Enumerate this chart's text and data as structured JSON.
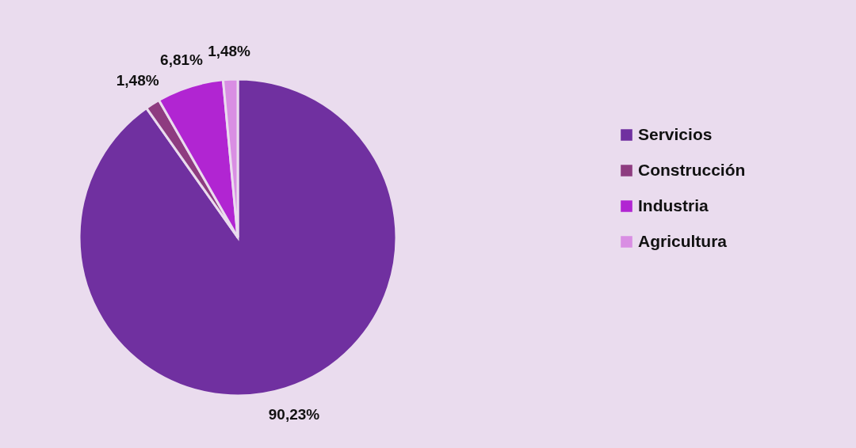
{
  "chart_data": {
    "type": "pie",
    "categories": [
      "Servicios",
      "Construcción",
      "Industria",
      "Agricultura"
    ],
    "values": [
      90.23,
      1.48,
      6.81,
      1.48
    ],
    "colors": [
      "#7030a0",
      "#8e3c80",
      "#b125d2",
      "#d98ee3"
    ],
    "value_labels": [
      "90,23%",
      "1,48%",
      "6,81%",
      "1,48%"
    ],
    "legend": "right"
  }
}
